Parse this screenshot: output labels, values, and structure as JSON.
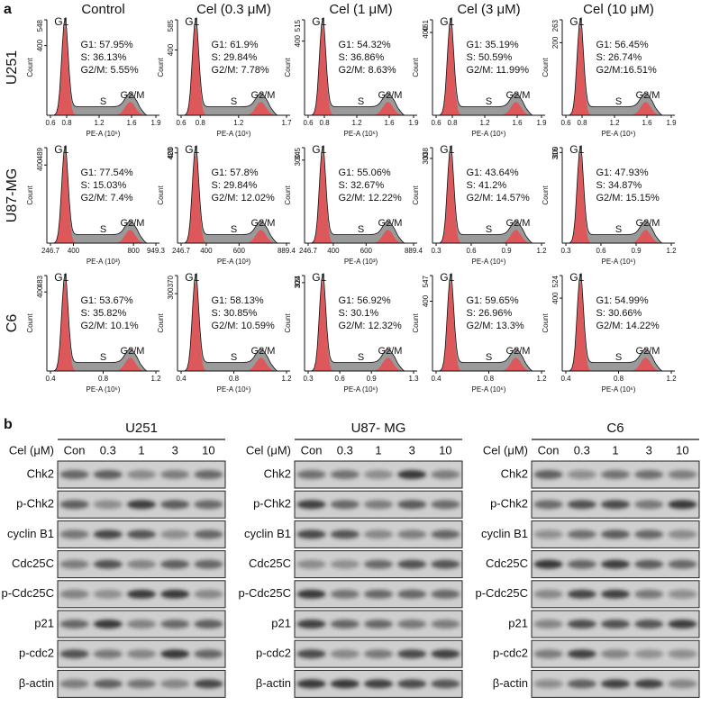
{
  "panel_a": {
    "label": "a",
    "columns": [
      "Control",
      "Cel (0.3 μM)",
      "Cel (1 μM)",
      "Cel (3 μM)",
      "Cel (10 μM)"
    ],
    "y_axis_label": "Count",
    "peak_labels": [
      "G1",
      "S",
      "G2/M"
    ],
    "rows": [
      {
        "name": "U251",
        "cells": [
          {
            "ymax": 548,
            "yticks": [
              400
            ],
            "xticks": [
              0.6,
              0.8,
              1.2,
              1.6,
              1.9
            ],
            "xlabel": "PE-A (10⁶)",
            "stats": [
              "G1: 57.95%",
              "S: 36.13%",
              "G2/M: 5.55%"
            ]
          },
          {
            "ymax": 585,
            "yticks": [
              400
            ],
            "xticks": [
              0.6,
              0.8,
              1.2,
              1.7
            ],
            "xlabel": "PE-A (10⁶)",
            "stats": [
              "G1: 61.9%",
              "S: 29.84%",
              "G2/M: 7.78%"
            ]
          },
          {
            "ymax": 515,
            "yticks": [
              400
            ],
            "xticks": [
              0.6,
              0.8,
              1.2,
              1.6,
              1.9
            ],
            "xlabel": "PE-A (10⁶)",
            "stats": [
              "G1: 54.32%",
              "S: 36.86%",
              "G2/M: 8.63%"
            ]
          },
          {
            "ymax": 461,
            "yticks": [
              400
            ],
            "xticks": [
              0.6,
              0.8,
              1.2,
              1.6,
              1.9
            ],
            "xlabel": "PE-A (10⁶)",
            "stats": [
              "G1: 35.19%",
              "S: 50.59%",
              "G2/M: 11.99%"
            ]
          },
          {
            "ymax": 263,
            "yticks": [
              200
            ],
            "xticks": [
              0.6,
              0.8,
              1.2,
              1.6,
              1.9
            ],
            "xlabel": "PE-A (10⁶)",
            "stats": [
              "G1: 56.45%",
              "S: 26.74%",
              "G2/M:16.51%"
            ]
          }
        ]
      },
      {
        "name": "U87-MG",
        "cells": [
          {
            "ymax": 489,
            "yticks": [
              400
            ],
            "xticks": [
              246.7,
              400,
              800,
              949.3
            ],
            "xlabel": "PE-A (10³)",
            "stats": [
              "G1: 77.54%",
              "S: 15.03%",
              "G2/M: 7.4%"
            ]
          },
          {
            "ymax": 423,
            "yticks": [
              400
            ],
            "xticks": [
              246.7,
              400,
              600,
              889.4
            ],
            "xlabel": "PE-A (10³)",
            "stats": [
              "G1: 57.8%",
              "S: 29.84%",
              "G2/M: 12.02%"
            ]
          },
          {
            "ymax": 345,
            "yticks": [
              300
            ],
            "xticks": [
              246.7,
              400,
              600,
              889.4
            ],
            "xlabel": "PE-A (10³)",
            "stats": [
              "G1: 55.06%",
              "S: 32.67%",
              "G2/M: 12.22%"
            ]
          },
          {
            "ymax": 338,
            "yticks": [
              300
            ],
            "xticks": [
              0.3,
              0.6,
              0.9,
              1.2
            ],
            "xlabel": "PE-A (10⁶)",
            "stats": [
              "G1: 43.64%",
              "S: 41.2%",
              "G2/M: 14.57%"
            ]
          },
          {
            "ymax": 316,
            "yticks": [
              300
            ],
            "xticks": [
              0.3,
              0.6,
              0.9,
              1.2
            ],
            "xlabel": "PE-A (10⁶)",
            "stats": [
              "G1: 47.93%",
              "S: 34.87%",
              "G2/M: 15.15%"
            ]
          }
        ]
      },
      {
        "name": "C6",
        "cells": [
          {
            "ymax": 483,
            "yticks": [
              400
            ],
            "xticks": [
              0.4,
              0.8,
              1.2
            ],
            "xlabel": "PE-A (10⁶)",
            "stats": [
              "G1: 53.67%",
              "S: 35.82%",
              "G2/M: 10.1%"
            ]
          },
          {
            "ymax": 370,
            "yticks": [
              300
            ],
            "xticks": [
              0.4,
              0.8,
              1.2
            ],
            "xlabel": "PE-A (10⁶)",
            "stats": [
              "G1: 58.13%",
              "S: 30.85%",
              "G2/M: 10.59%"
            ]
          },
          {
            "ymax": 324,
            "yticks": [
              300
            ],
            "xticks": [
              0.3,
              0.6,
              0.9,
              1.3
            ],
            "xlabel": "PE-A (10⁶)",
            "stats": [
              "G1: 56.92%",
              "S: 30.1%",
              "G2/M: 12.32%"
            ]
          },
          {
            "ymax": 547,
            "yticks": [
              400
            ],
            "xticks": [
              0.4,
              0.8,
              1.2
            ],
            "xlabel": "PE-A (10⁶)",
            "stats": [
              "G1: 59.65%",
              "S: 26.96%",
              "G2/M: 13.3%"
            ]
          },
          {
            "ymax": 524,
            "yticks": [
              400
            ],
            "xticks": [
              0.4,
              0.8,
              1.2
            ],
            "xlabel": "PE-A (10⁶)",
            "stats": [
              "G1: 54.99%",
              "S: 30.66%",
              "G2/M: 14.22%"
            ]
          }
        ]
      }
    ]
  },
  "panel_b": {
    "label": "b",
    "concentration_label": "Cel (μM)",
    "lanes": [
      "Con",
      "0.3",
      "1",
      "3",
      "10"
    ],
    "proteins": [
      "Chk2",
      "p-Chk2",
      "cyclin B1",
      "Cdc25C",
      "p-Cdc25C",
      "p21",
      "p-cdc2",
      "β-actin"
    ],
    "blots": [
      "U251",
      "U87- MG",
      "C6"
    ]
  }
}
